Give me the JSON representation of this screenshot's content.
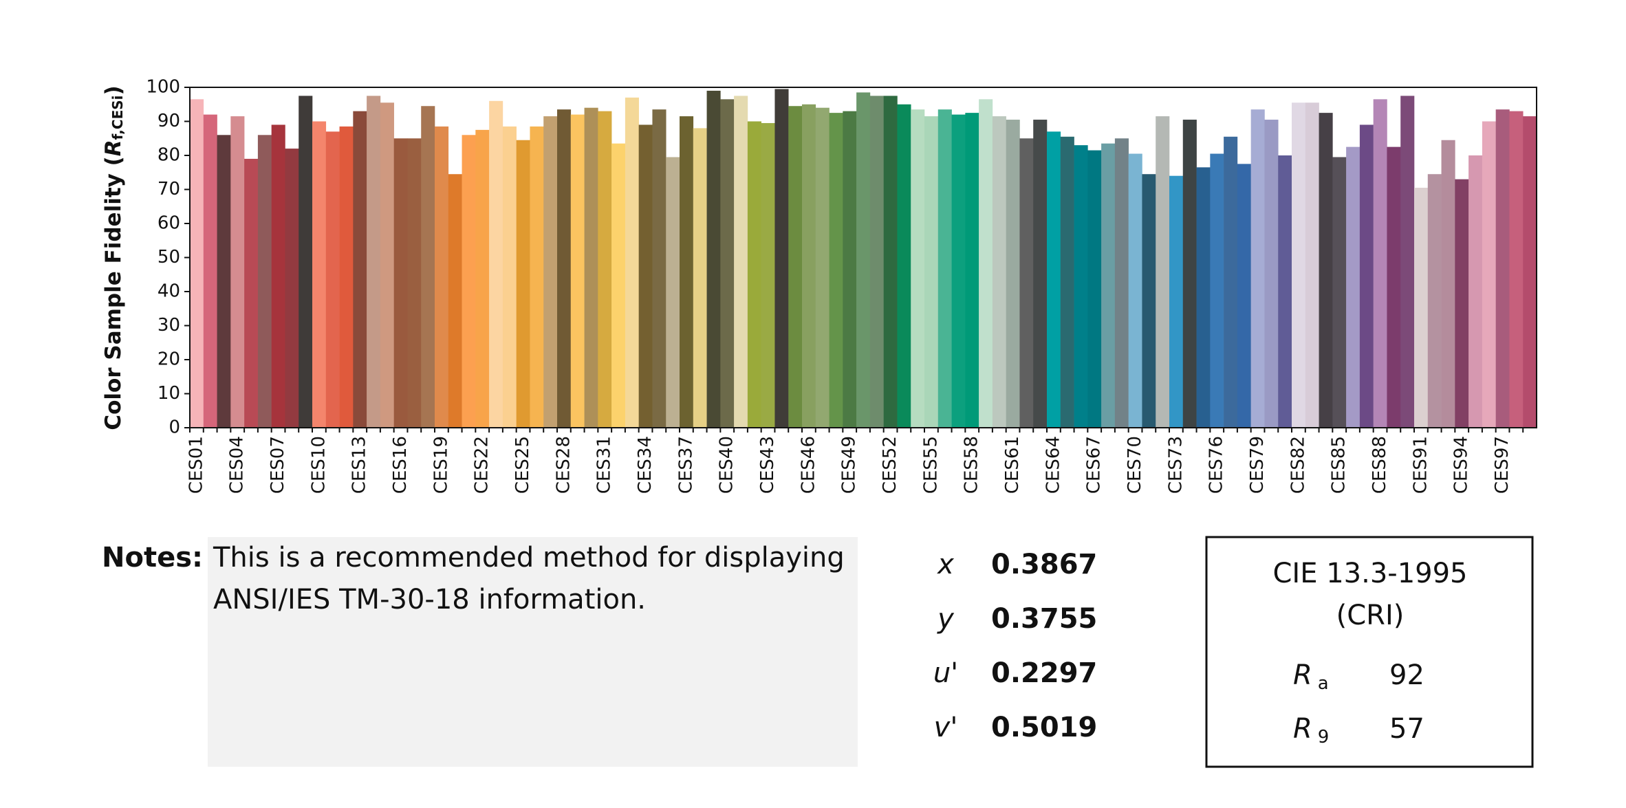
{
  "chart_data": {
    "type": "bar",
    "ylabel": {
      "text": "Color Sample Fidelity (",
      "symbol": "R",
      "subscript": "f,CESi",
      "close": ")"
    },
    "categories": [
      "CES01",
      null,
      null,
      "CES04",
      null,
      null,
      "CES07",
      null,
      null,
      "CES10",
      null,
      null,
      "CES13",
      null,
      null,
      "CES16",
      null,
      null,
      "CES19",
      null,
      null,
      "CES22",
      null,
      null,
      "CES25",
      null,
      null,
      "CES28",
      null,
      null,
      "CES31",
      null,
      null,
      "CES34",
      null,
      null,
      "CES37",
      null,
      null,
      "CES40",
      null,
      null,
      "CES43",
      null,
      null,
      "CES46",
      null,
      null,
      "CES49",
      null,
      null,
      "CES52",
      null,
      null,
      "CES55",
      null,
      null,
      "CES58",
      null,
      null,
      "CES61",
      null,
      null,
      "CES64",
      null,
      null,
      "CES67",
      null,
      null,
      "CES70",
      null,
      null,
      "CES73",
      null,
      null,
      "CES76",
      null,
      null,
      "CES79",
      null,
      null,
      "CES82",
      null,
      null,
      "CES85",
      null,
      null,
      "CES88",
      null,
      null,
      "CES91",
      null,
      null,
      "CES94",
      null,
      null,
      "CES97",
      null,
      null
    ],
    "values": [
      96.5,
      92,
      86,
      91.5,
      79,
      86,
      89,
      82,
      97.5,
      90,
      87,
      88.5,
      93,
      97.5,
      95.5,
      85,
      85,
      94.5,
      88.5,
      74.5,
      86,
      87.5,
      96,
      88.5,
      84.5,
      88.5,
      91.5,
      93.5,
      92,
      94,
      93,
      83.5,
      97,
      89,
      93.5,
      79.5,
      91.5,
      88,
      99,
      96.5,
      97.5,
      90,
      89.5,
      99.5,
      94.5,
      95,
      94,
      92.5,
      93,
      98.5,
      97.5,
      97.5,
      95,
      93.5,
      91.5,
      93.5,
      92,
      92.5,
      96.5,
      91.5,
      90.5,
      85,
      90.5,
      87,
      85.5,
      83,
      81.5,
      83.5,
      85,
      80.5,
      74.5,
      91.5,
      74,
      90.5,
      76.5,
      80.5,
      85.5,
      77.5,
      93.5,
      90.5,
      80,
      95.5,
      95.5,
      92.5,
      79.5,
      82.5,
      89,
      96.5,
      82.5,
      97.5,
      70.5,
      74.5,
      84.5,
      73,
      80,
      90,
      93.5,
      93,
      91.5
    ],
    "colors": [
      "#f6b4b8",
      "#d5667a",
      "#5e3a3c",
      "#d58c90",
      "#b84a55",
      "#8f5a5a",
      "#a6343c",
      "#933a40",
      "#3f3b39",
      "#f4856c",
      "#e3654e",
      "#e05a3c",
      "#8a4a3a",
      "#c49a88",
      "#cf9980",
      "#9a5a3e",
      "#9a5f40",
      "#a67552",
      "#e08a4c",
      "#de7a2a",
      "#fca050",
      "#f8a44a",
      "#fcd5a2",
      "#fbd090",
      "#e09a30",
      "#f6b450",
      "#c2a070",
      "#705a34",
      "#fbc460",
      "#ae9058",
      "#d6aa40",
      "#fcd26c",
      "#f4d898",
      "#746030",
      "#7a6a44",
      "#bcb092",
      "#6c6230",
      "#e6d086",
      "#4a4a34",
      "#6c6a4a",
      "#e4dab0",
      "#9aaa3a",
      "#9aaa44",
      "#403c38",
      "#6c8c40",
      "#88a060",
      "#92a870",
      "#64944a",
      "#4c7a44",
      "#6a966a",
      "#6e8c6c",
      "#2e6a40",
      "#0a8a5a",
      "#b6dcc0",
      "#aad6b8",
      "#4ab494",
      "#0ca07e",
      "#009a78",
      "#c0e0cc",
      "#bcc8be",
      "#9aaaa0",
      "#606060",
      "#464a4a",
      "#00a0a4",
      "#2a6a70",
      "#00808a",
      "#007882",
      "#6a9ea4",
      "#728288",
      "#7ab4d2",
      "#285a70",
      "#b4b8b4",
      "#3296c6",
      "#3e4444",
      "#286090",
      "#3a7ab6",
      "#3c6a9c",
      "#3468a8",
      "#a6acd4",
      "#9a9ac4",
      "#605c96",
      "#e0d8e4",
      "#d8ccd8",
      "#464046",
      "#565058",
      "#a49ac6",
      "#6c4a86",
      "#b486b6",
      "#7c3c6c",
      "#7c4a78",
      "#dcd0d0",
      "#b492a0",
      "#b48c9c",
      "#824064",
      "#d698b0",
      "#e6a8ba",
      "#a85c7c",
      "#c6607c",
      "#b44c6c"
    ],
    "ylim": [
      0,
      100
    ],
    "yticks": [
      0,
      10,
      20,
      30,
      40,
      50,
      60,
      70,
      80,
      90,
      100
    ],
    "grid": false
  },
  "notes": {
    "label": "Notes:",
    "lines": [
      "This is a recommended method for displaying",
      "ANSI/IES TM-30-18 information."
    ]
  },
  "chromaticity": [
    {
      "symbol": "x",
      "value": "0.3867"
    },
    {
      "symbol": "y",
      "value": "0.3755"
    },
    {
      "symbol": "u'",
      "value": "0.2297"
    },
    {
      "symbol": "v'",
      "value": "0.5019"
    }
  ],
  "cri": {
    "title": "CIE 13.3-1995",
    "subtitle": "(CRI)",
    "rows": [
      {
        "symbol": "R",
        "subscript": "a",
        "value": 92
      },
      {
        "symbol": "R",
        "subscript": "9",
        "value": 57
      }
    ]
  }
}
